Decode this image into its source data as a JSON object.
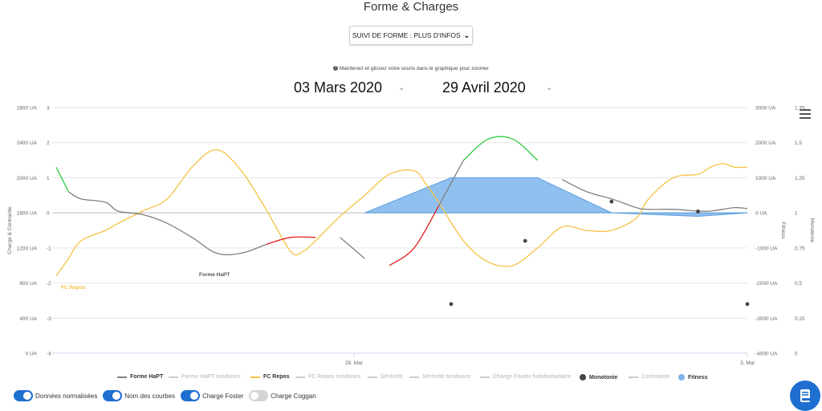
{
  "page": {
    "title": "Forme & Charges",
    "dropdown_label": "SUIVI DE FORME : PLUS D'INFOS",
    "hint": "Maintenez et glissez votre souris dans le graphique pour zoomer",
    "date_from": "03 Mars 2020",
    "date_to": "29 Avril 2020"
  },
  "toggles": [
    {
      "label": "Données normalisées",
      "on": true
    },
    {
      "label": "Nom des courbes",
      "on": true
    },
    {
      "label": "Charge Foster",
      "on": true
    },
    {
      "label": "Charge Coggan",
      "on": false
    }
  ],
  "colors": {
    "forme": "#808080",
    "forme_green": "#2ecc40",
    "forme_red": "#e02020",
    "fc_repos": "#f5c242",
    "fitness": "#7cb5ec",
    "monotonie": "#444444",
    "accent": "#1f6fd1"
  },
  "chart_data": {
    "type": "line",
    "x_ticks": [
      "28. Mar",
      "3. Mai"
    ],
    "y_axes": [
      {
        "label": "Charge & Contrainte",
        "ticks": [
          "0 UA",
          "400 UA",
          "800 UA",
          "1200 UA",
          "1600 UA",
          "2000 UA",
          "2400 UA",
          "2800 UA"
        ]
      },
      {
        "label": "",
        "ticks": [
          "-4",
          "-3",
          "-2",
          "-1",
          "0",
          "1",
          "2",
          "3"
        ]
      },
      {
        "label": "Fitness",
        "ticks": [
          "-4000 UA",
          "-3000 UA",
          "-2000 UA",
          "-1000 UA",
          "0 UA",
          "1000 UA",
          "2000 UA",
          "3000 UA"
        ]
      },
      {
        "label": "Monotonie",
        "ticks": [
          "0",
          "0.25",
          "0.5",
          "0.75",
          "1",
          "1.25",
          "1.5",
          "1.75"
        ]
      }
    ],
    "legend": [
      {
        "name": "Forme HaPT",
        "visible": true,
        "symbol": "line",
        "color": "#808080"
      },
      {
        "name": "Forme HaPT tendance",
        "visible": false,
        "symbol": "line",
        "color": "#cccccc"
      },
      {
        "name": "FC Repos",
        "visible": true,
        "symbol": "line",
        "color": "#f5c242"
      },
      {
        "name": "FC Repos tendance",
        "visible": false,
        "symbol": "line",
        "color": "#cccccc"
      },
      {
        "name": "Sérénité",
        "visible": false,
        "symbol": "line",
        "color": "#cccccc"
      },
      {
        "name": "Sérénité tendance",
        "visible": false,
        "symbol": "line",
        "color": "#cccccc"
      },
      {
        "name": "Charge Foster hebdomadaire",
        "visible": false,
        "symbol": "line-dot",
        "color": "#cccccc"
      },
      {
        "name": "Monotonie",
        "visible": true,
        "symbol": "dot",
        "color": "#444444"
      },
      {
        "name": "Contrainte",
        "visible": false,
        "symbol": "line-dot",
        "color": "#cccccc"
      },
      {
        "name": "Fitness",
        "visible": true,
        "symbol": "dot",
        "color": "#7cb5ec"
      }
    ],
    "series_labels": {
      "forme": "Forme HaPT",
      "fc_repos": "FC Repos",
      "fitness": "Fitness"
    },
    "x_range_days": [
      0,
      56
    ],
    "forme_hapt": {
      "x": [
        0,
        1,
        2,
        4,
        5,
        7,
        9,
        11,
        13,
        15,
        17,
        19,
        21,
        23,
        25,
        27,
        29,
        31,
        33,
        35,
        37,
        39,
        41,
        43,
        45,
        47,
        48,
        50,
        52,
        53,
        54,
        55,
        56
      ],
      "y": [
        1.3,
        0.6,
        0.4,
        0.3,
        0.05,
        -0.05,
        -0.3,
        -0.7,
        -1.15,
        -1.15,
        -0.9,
        -0.7,
        -0.7,
        -0.7,
        -1.3,
        -1.5,
        -1.0,
        0.2,
        1.5,
        2.1,
        2.1,
        1.5,
        0.95,
        0.6,
        0.4,
        0.15,
        0.1,
        0.1,
        0.05,
        0.05,
        0.1,
        0.15,
        0.12
      ],
      "segments": [
        {
          "from": 0,
          "to": 1,
          "color": "green"
        },
        {
          "from": 1,
          "to": 17,
          "color": "gray"
        },
        {
          "from": 17,
          "to": 22,
          "color": "red"
        },
        {
          "from": 22,
          "to": 26,
          "color": "gray"
        },
        {
          "from": 26,
          "to": 31,
          "color": "red"
        },
        {
          "from": 31,
          "to": 33,
          "color": "gray"
        },
        {
          "from": 33,
          "to": 40,
          "color": "green"
        },
        {
          "from": 40,
          "to": 56,
          "color": "gray"
        }
      ]
    },
    "fc_repos": {
      "x": [
        0,
        1,
        2,
        4,
        5,
        7,
        9,
        11,
        13,
        15,
        17,
        19,
        20,
        21,
        23,
        25,
        27,
        29,
        30,
        31,
        33,
        35,
        37,
        39,
        41,
        43,
        45,
        47,
        48,
        50,
        52,
        53,
        54,
        55,
        56
      ],
      "y": [
        -1.8,
        -1.3,
        -0.8,
        -0.5,
        -0.3,
        0.05,
        0.4,
        1.3,
        1.8,
        1.2,
        0.1,
        -1.1,
        -1.1,
        -0.8,
        -0.1,
        0.5,
        1.1,
        1.2,
        0.8,
        0.3,
        -0.8,
        -1.4,
        -1.5,
        -1.0,
        -0.4,
        -0.5,
        -0.5,
        -0.15,
        0.4,
        1.0,
        1.1,
        1.3,
        1.4,
        1.3,
        1.3
      ]
    },
    "fitness_area": {
      "x": [
        25,
        32,
        39,
        45,
        52,
        56
      ],
      "y": [
        0,
        1.0,
        1.0,
        0,
        -0.1,
        0
      ]
    },
    "monotonie_points": {
      "x": [
        32,
        38,
        45,
        52,
        56
      ],
      "y": [
        0.35,
        0.8,
        1.08,
        1.01,
        0.35
      ]
    }
  }
}
